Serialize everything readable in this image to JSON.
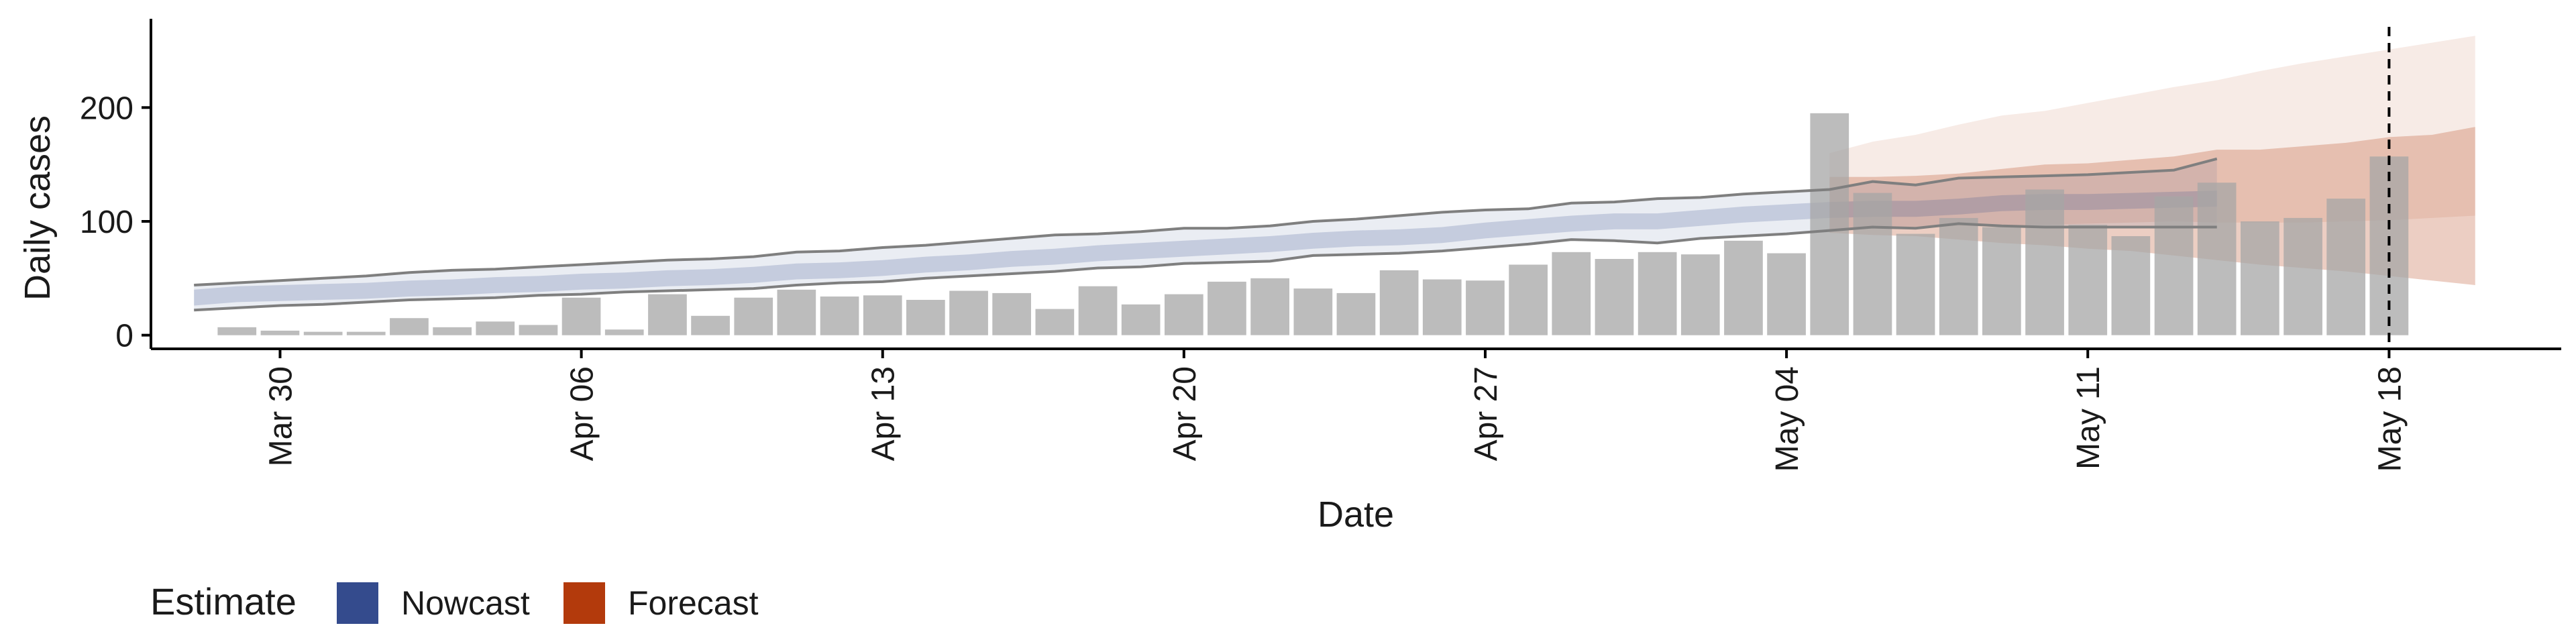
{
  "chart_data": {
    "type": "bar",
    "xlabel": "Date",
    "ylabel": "Daily cases",
    "x_range": [
      "2020-03-27",
      "2020-05-22"
    ],
    "ylim": [
      -12,
      278
    ],
    "yticks": [
      0,
      100,
      200
    ],
    "xticks": [
      {
        "date": "2020-03-30",
        "label": "Mar 30"
      },
      {
        "date": "2020-04-06",
        "label": "Apr 06"
      },
      {
        "date": "2020-04-13",
        "label": "Apr 13"
      },
      {
        "date": "2020-04-20",
        "label": "Apr 20"
      },
      {
        "date": "2020-04-27",
        "label": "Apr 27"
      },
      {
        "date": "2020-05-04",
        "label": "May 04"
      },
      {
        "date": "2020-05-11",
        "label": "May 11"
      },
      {
        "date": "2020-05-18",
        "label": "May 18"
      }
    ],
    "grid": false,
    "reference_line": {
      "date": "2020-05-18",
      "style": "dashed"
    },
    "observed": {
      "start": "2020-03-29",
      "values": [
        7,
        4,
        3,
        3,
        15,
        7,
        12,
        9,
        33,
        5,
        36,
        17,
        33,
        40,
        34,
        35,
        31,
        39,
        37,
        23,
        43,
        27,
        36,
        47,
        50,
        41,
        37,
        57,
        49,
        48,
        62,
        73,
        67,
        73,
        71,
        83,
        72,
        195,
        125,
        89,
        103,
        95,
        128,
        97,
        87,
        122,
        134,
        100,
        103,
        120,
        157
      ]
    },
    "series": [
      {
        "name": "Nowcast",
        "color": "#344b8d",
        "start": "2020-03-28",
        "median": [
          33,
          36,
          37,
          38,
          39,
          41,
          42,
          44,
          45,
          47,
          48,
          50,
          51,
          53,
          56,
          57,
          59,
          62,
          64,
          67,
          69,
          72,
          74,
          76,
          78,
          80,
          83,
          85,
          86,
          88,
          92,
          95,
          98,
          100,
          100,
          103,
          106,
          108,
          110,
          111,
          111,
          113,
          116,
          117,
          117,
          118,
          119,
          120
        ],
        "lower_90": [
          22,
          24,
          26,
          27,
          29,
          31,
          32,
          33,
          35,
          36,
          38,
          39,
          40,
          41,
          44,
          46,
          47,
          50,
          52,
          54,
          56,
          59,
          60,
          63,
          64,
          65,
          70,
          71,
          72,
          74,
          77,
          80,
          84,
          83,
          81,
          85,
          87,
          89,
          92,
          95,
          94,
          98,
          96,
          95,
          95,
          95,
          95,
          95
        ],
        "upper_90": [
          44,
          46,
          48,
          50,
          52,
          55,
          57,
          58,
          60,
          62,
          64,
          66,
          67,
          69,
          73,
          74,
          77,
          79,
          82,
          85,
          88,
          89,
          91,
          94,
          94,
          96,
          100,
          102,
          105,
          108,
          110,
          111,
          116,
          117,
          120,
          121,
          124,
          126,
          128,
          135,
          132,
          138,
          139,
          140,
          141,
          143,
          145,
          155
        ]
      },
      {
        "name": "Forecast",
        "color": "#b33a0c",
        "start": "2020-05-05",
        "median": [
          115,
          116,
          117,
          119,
          121,
          122,
          124,
          126,
          128,
          130,
          131,
          132,
          133,
          132,
          131,
          130
        ],
        "lower_90": [
          90,
          88,
          87,
          84,
          81,
          79,
          76,
          74,
          70,
          66,
          62,
          59,
          56,
          52,
          48,
          44
        ],
        "upper_90": [
          137,
          140,
          147,
          154,
          159,
          161,
          165,
          172,
          180,
          186,
          193,
          199,
          204,
          208,
          214,
          218
        ],
        "lower_outer": [
          90,
          88,
          87,
          84,
          81,
          79,
          76,
          74,
          70,
          66,
          62,
          59,
          56,
          52,
          48,
          44
        ],
        "upper_outer": [
          160,
          170,
          176,
          185,
          193,
          197,
          204,
          211,
          218,
          224,
          232,
          239,
          245,
          251,
          257,
          263
        ],
        "inner_upper": [
          139,
          139,
          140,
          142,
          146,
          150,
          151,
          154,
          157,
          163,
          163,
          166,
          169,
          174,
          176,
          183
        ],
        "inner_lower": [
          92,
          94,
          95,
          96,
          96,
          97,
          98,
          99,
          100,
          99,
          99,
          99,
          100,
          101,
          103,
          105
        ]
      }
    ],
    "legend": {
      "title": "Estimate",
      "position": "bottom-left",
      "items": [
        {
          "label": "Nowcast",
          "color": "#344b8d"
        },
        {
          "label": "Forecast",
          "color": "#b33a0c"
        }
      ]
    }
  }
}
